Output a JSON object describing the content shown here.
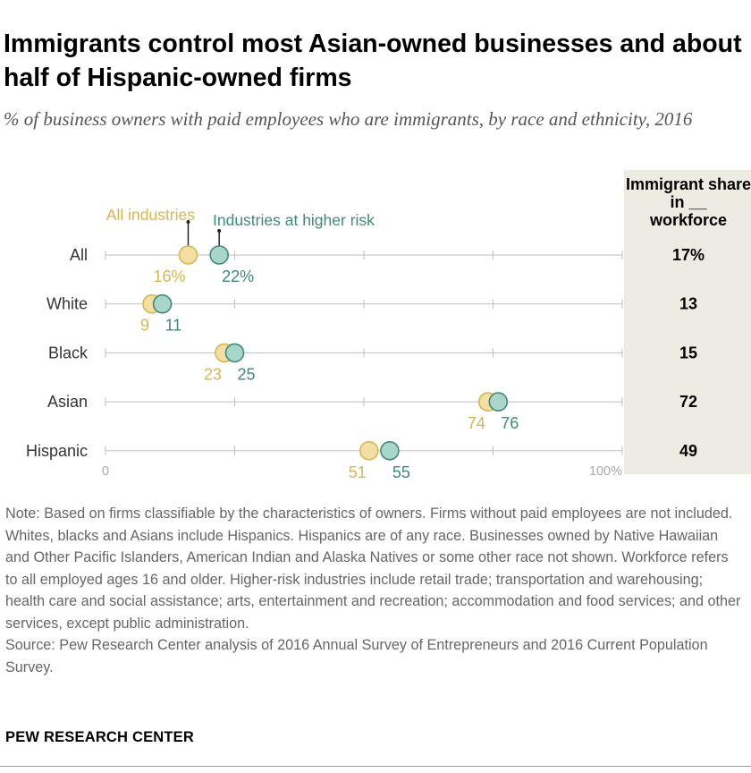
{
  "title": "Immigrants control most Asian-owned businesses and about half of Hispanic-owned firms",
  "subtitle": "% of business owners with paid employees who are immigrants, by race and ethnicity, 2016",
  "chart_data": {
    "type": "dot",
    "categories": [
      "All",
      "White",
      "Black",
      "Asian",
      "Hispanic"
    ],
    "series": [
      {
        "name": "All industries",
        "values": [
          16,
          9,
          23,
          74,
          51
        ],
        "labels": [
          "16%",
          "9",
          "23",
          "74",
          "51"
        ],
        "color": "#D8B64E",
        "fill": "#F3DFA3"
      },
      {
        "name": "Industries at higher risk",
        "values": [
          22,
          11,
          25,
          76,
          55
        ],
        "labels": [
          "22%",
          "11",
          "25",
          "76",
          "55"
        ],
        "color": "#3F8A78",
        "fill": "#A9D6CB"
      }
    ],
    "xlim": [
      0,
      100
    ],
    "axis_labels": [
      "0",
      "100%"
    ],
    "side_column": {
      "header": "Immigrant share in __ workforce",
      "values": [
        "17%",
        "13",
        "15",
        "72",
        "49"
      ],
      "background": "#EEECE2"
    }
  },
  "note": "Note: Based on firms classifiable by the characteristics of owners. Firms without paid employees are not included. Whites, blacks and Asians include Hispanics. Hispanics are of any race. Businesses owned by Native Hawaiian and Other Pacific Islanders, American Indian and Alaska Natives or some other race not shown. Workforce refers to all employed ages 16 and older. Higher-risk industries include retail trade; transportation and warehousing; health care and social assistance; arts, entertainment and recreation; accommodation and food services; and other services, except public administration.",
  "source": "Source: Pew Research Center analysis of 2016 Annual Survey of Entrepreneurs and 2016 Current Population Survey.",
  "org": "PEW RESEARCH CENTER"
}
